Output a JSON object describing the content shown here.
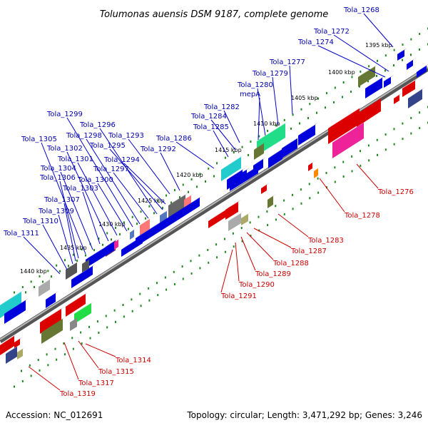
{
  "title": "Tolumonas auensis DSM 9187, complete genome",
  "footer": {
    "accession": "Accession: NC_012691",
    "summary": "Topology: circular; Length: 3,471,292 bp; Genes: 3,246"
  },
  "colors": {
    "forward": "#0000dd",
    "reverse": "#dd0000",
    "backbone": "#7a7a7a",
    "tick": "#228822",
    "label_forward": "#0000aa",
    "label_reverse": "#cc0000"
  },
  "scale_labels": [
    "1395 kbp",
    "1400 kbp",
    "1405 kbp",
    "1410 kbp",
    "1415 kbp",
    "1420 kbp",
    "1425 kbp",
    "1430 kbp",
    "1435 kbp",
    "1440 kbp"
  ],
  "forward_labels": [
    "Tola_1268",
    "Tola_1272",
    "Tola_1274",
    "Tola_1277",
    "Tola_1279",
    "Tola_1280",
    "mepA",
    "Tola_1282",
    "Tola_1284",
    "Tola_1285",
    "Tola_1286",
    "Tola_1292",
    "Tola_1293",
    "Tola_1294",
    "Tola_1295",
    "Tola_1296",
    "Tola_1297",
    "Tola_1298",
    "Tola_1299",
    "Tola_1300",
    "Tola_1301",
    "Tola_1302",
    "Tola_1303",
    "Tola_1304",
    "Tola_1305",
    "Tola_1306",
    "Tola_1307",
    "Tola_1309",
    "Tola_1310",
    "Tola_1311"
  ],
  "reverse_labels": [
    "Tola_1276",
    "Tola_1278",
    "Tola_1283",
    "Tola_1287",
    "Tola_1288",
    "Tola_1289",
    "Tola_1290",
    "Tola_1291",
    "Tola_1314",
    "Tola_1315",
    "Tola_1317",
    "Tola_1319"
  ]
}
